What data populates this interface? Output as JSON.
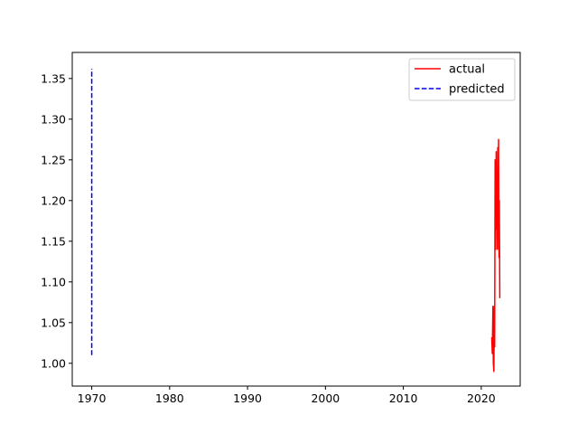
{
  "chart_data": {
    "type": "line",
    "title": "",
    "xlabel": "",
    "ylabel": "",
    "xlim": [
      1967.5,
      2025
    ],
    "ylim": [
      0.972,
      1.382
    ],
    "grid": false,
    "legend_placement": "top-right",
    "x_ticks": [
      1970,
      1980,
      1990,
      2000,
      2010,
      2020
    ],
    "x_tick_labels": [
      "1970",
      "1980",
      "1990",
      "2000",
      "2010",
      "2020"
    ],
    "y_ticks": [
      1.0,
      1.05,
      1.1,
      1.15,
      1.2,
      1.25,
      1.3,
      1.35
    ],
    "y_tick_labels": [
      "1.00",
      "1.05",
      "1.10",
      "1.15",
      "1.20",
      "1.25",
      "1.30",
      "1.35"
    ],
    "series": [
      {
        "name": "actual",
        "color": "#ff0000",
        "style": "solid",
        "x": [
          2021.35,
          2021.42,
          2021.5,
          2021.55,
          2021.62,
          2021.68,
          2021.72,
          2021.78,
          2021.85,
          2021.92,
          2021.98,
          2022.02,
          2022.08,
          2022.12,
          2022.18,
          2022.22,
          2022.28,
          2022.32,
          2022.38
        ],
        "y": [
          1.032,
          1.012,
          1.07,
          1.0,
          0.99,
          1.07,
          1.02,
          1.25,
          1.14,
          1.26,
          1.165,
          1.23,
          1.14,
          1.265,
          1.2,
          1.275,
          1.13,
          1.2,
          1.08
        ]
      },
      {
        "name": "predicted",
        "color": "#0000ff",
        "style": "dashed",
        "x": [
          1970.0,
          1970.0
        ],
        "y": [
          1.01,
          1.362
        ]
      }
    ]
  }
}
